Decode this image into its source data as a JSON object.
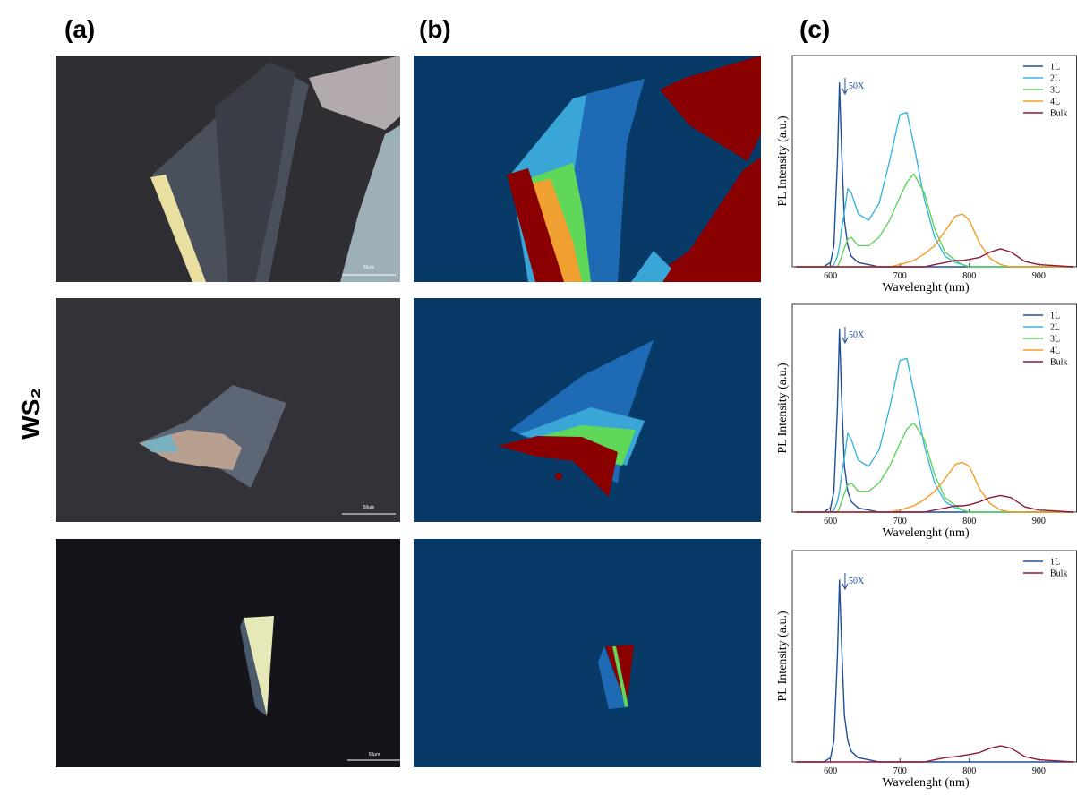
{
  "panel_labels": [
    "(a)",
    "(b)",
    "(c)"
  ],
  "material": "WS₂",
  "micrographs": [
    {
      "scale_bar": "50μm"
    },
    {
      "scale_bar": "50μm"
    },
    {
      "scale_bar": "50μm"
    }
  ],
  "chart_data": [
    {
      "type": "line",
      "xlabel": "Wavelenght (nm)",
      "ylabel": "PL Intensity (a.u.)",
      "annotation": "50X",
      "xlim": [
        545,
        955
      ],
      "xticks": [
        600,
        700,
        800,
        900
      ],
      "ylim": [
        0,
        100
      ],
      "legend": "upper right",
      "x": [
        550,
        590,
        600,
        605,
        610,
        613,
        616,
        620,
        625,
        630,
        640,
        655,
        670,
        685,
        700,
        710,
        720,
        735,
        750,
        765,
        780,
        790,
        800,
        815,
        830,
        845,
        860,
        880,
        900,
        950
      ],
      "series": [
        {
          "name": "1L",
          "color": "#1f4e9c",
          "values": [
            0,
            0,
            2,
            10,
            50,
            87,
            55,
            22,
            10,
            5,
            2,
            1,
            0,
            0,
            0,
            0,
            0,
            0,
            0,
            0,
            0,
            0,
            0,
            0,
            0,
            0,
            0,
            0,
            0,
            0
          ]
        },
        {
          "name": "2L",
          "color": "#3cb4e0",
          "values": [
            0,
            0,
            0,
            1,
            5,
            10,
            18,
            26,
            37,
            35,
            25,
            22,
            30,
            50,
            72,
            73,
            58,
            32,
            14,
            5,
            2,
            1,
            0,
            0,
            0,
            0,
            0,
            0,
            0,
            0
          ]
        },
        {
          "name": "3L",
          "color": "#5dd45a",
          "values": [
            0,
            0,
            0,
            0,
            0,
            2,
            5,
            9,
            13,
            14,
            10,
            10,
            14,
            22,
            33,
            40,
            44,
            35,
            18,
            7,
            3,
            1,
            0,
            0,
            0,
            0,
            0,
            0,
            0,
            0
          ]
        },
        {
          "name": "4L",
          "color": "#f59a24",
          "values": [
            0,
            0,
            0,
            0,
            0,
            0,
            0,
            0,
            0,
            0,
            0,
            0,
            0,
            0,
            1,
            2,
            3,
            6,
            10,
            17,
            24,
            25,
            22,
            11,
            4,
            1,
            0,
            0,
            0,
            0
          ]
        },
        {
          "name": "Bulk",
          "color": "#8b1a3a",
          "values": [
            0,
            0,
            0,
            0,
            0,
            0,
            0,
            0,
            0,
            0,
            0,
            0,
            0,
            0,
            0,
            0,
            0,
            0,
            1,
            2,
            3,
            3,
            3.5,
            4.5,
            7,
            8.5,
            7,
            2.5,
            1,
            0
          ]
        }
      ]
    },
    {
      "type": "line",
      "xlabel": "Wavelenght (nm)",
      "ylabel": "PL Intensity (a.u.)",
      "annotation": "50X",
      "xlim": [
        545,
        955
      ],
      "xticks": [
        600,
        700,
        800,
        900
      ],
      "ylim": [
        0,
        100
      ],
      "legend": "upper right",
      "x": [
        550,
        590,
        600,
        605,
        610,
        613,
        616,
        620,
        625,
        630,
        640,
        655,
        670,
        685,
        700,
        710,
        720,
        735,
        750,
        765,
        780,
        790,
        800,
        815,
        830,
        845,
        860,
        880,
        900,
        950
      ],
      "series": [
        {
          "name": "1L",
          "color": "#1f4e9c",
          "values": [
            0,
            0,
            2,
            10,
            50,
            88,
            55,
            22,
            10,
            5,
            2,
            1,
            0,
            0,
            0,
            0,
            0,
            0,
            0,
            0,
            0,
            0,
            0,
            0,
            0,
            0,
            0,
            0,
            0,
            0
          ]
        },
        {
          "name": "2L",
          "color": "#3cb4e0",
          "values": [
            0,
            0,
            0,
            1,
            5,
            10,
            18,
            26,
            38,
            35,
            25,
            22,
            30,
            50,
            73,
            74,
            58,
            32,
            14,
            5,
            2,
            1,
            0,
            0,
            0,
            0,
            0,
            0,
            0,
            0
          ]
        },
        {
          "name": "3L",
          "color": "#5dd45a",
          "values": [
            0,
            0,
            0,
            0,
            0,
            2,
            5,
            9,
            13,
            14,
            10,
            10,
            14,
            22,
            33,
            40,
            43,
            35,
            18,
            7,
            3,
            1,
            0,
            0,
            0,
            0,
            0,
            0,
            0,
            0
          ]
        },
        {
          "name": "4L",
          "color": "#f59a24",
          "values": [
            0,
            0,
            0,
            0,
            0,
            0,
            0,
            0,
            0,
            0,
            0,
            0,
            0,
            0,
            1,
            2,
            3,
            6,
            10,
            16,
            23,
            24,
            22,
            11,
            4,
            1,
            0,
            0,
            0,
            0
          ]
        },
        {
          "name": "Bulk",
          "color": "#8b1a3a",
          "values": [
            0,
            0,
            0,
            0,
            0,
            0,
            0,
            0,
            0,
            0,
            0,
            0,
            0,
            0,
            0,
            0,
            0,
            0,
            1,
            2,
            3,
            3,
            3.5,
            5,
            7,
            8,
            7,
            2.5,
            1,
            0
          ]
        }
      ]
    },
    {
      "type": "line",
      "xlabel": "Wavelenght (nm)",
      "ylabel": "PL Intensity (a.u.)",
      "annotation": "50X",
      "xlim": [
        545,
        955
      ],
      "xticks": [
        600,
        700,
        800,
        900
      ],
      "ylim": [
        0,
        100
      ],
      "legend": "upper right",
      "x": [
        550,
        590,
        600,
        605,
        610,
        613,
        616,
        620,
        625,
        630,
        640,
        655,
        670,
        685,
        700,
        710,
        720,
        735,
        750,
        765,
        780,
        790,
        800,
        815,
        830,
        845,
        860,
        880,
        900,
        950
      ],
      "series": [
        {
          "name": "1L",
          "color": "#1f4e9c",
          "values": [
            0,
            0,
            2,
            10,
            50,
            86,
            55,
            22,
            10,
            5,
            2,
            1,
            0,
            0,
            0,
            0,
            0,
            0,
            0,
            0,
            0,
            0,
            0,
            0,
            0,
            0,
            0,
            0,
            0,
            0
          ]
        },
        {
          "name": "Bulk",
          "color": "#8b1a3a",
          "values": [
            0,
            0,
            0,
            0,
            0,
            0,
            0,
            0,
            0,
            0,
            0,
            0,
            0,
            0,
            0,
            0,
            0,
            0,
            1,
            2,
            2.5,
            3,
            3.5,
            4.5,
            6.5,
            7.6,
            6.5,
            2.5,
            1,
            0
          ]
        }
      ]
    }
  ]
}
